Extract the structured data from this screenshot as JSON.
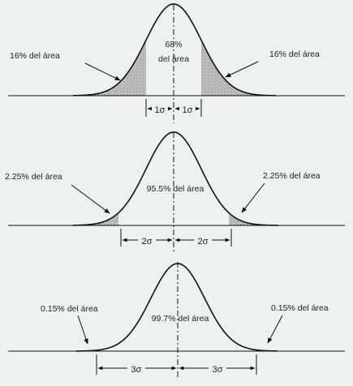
{
  "panels": [
    {
      "sigma": 1,
      "tail_left_label": "16% del área",
      "tail_right_label": "16% del área",
      "center_label_line1": "68%",
      "center_label_line2": "del área",
      "dim_left_label": "1σ",
      "dim_right_label": "1σ"
    },
    {
      "sigma": 2,
      "tail_left_label": "2.25% del área",
      "tail_right_label": "2.25% del área",
      "center_label_line1": "95.5% del área",
      "center_label_line2": "",
      "dim_left_label": "2σ",
      "dim_right_label": "2σ"
    },
    {
      "sigma": 3,
      "tail_left_label": "0.15% del área",
      "tail_right_label": "0.15% del área",
      "center_label_line1": "99.7% del área",
      "center_label_line2": "",
      "dim_left_label": "3σ",
      "dim_right_label": "3σ"
    }
  ],
  "colors": {
    "background": "#eef1f1",
    "curve": "#111111",
    "shading": "#b8b8b8",
    "text": "#222222"
  }
}
